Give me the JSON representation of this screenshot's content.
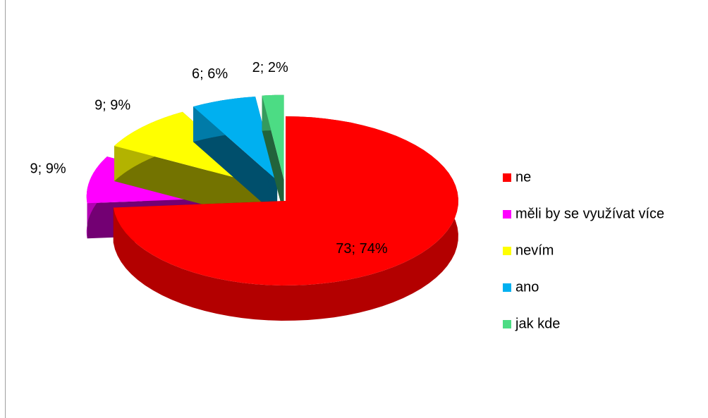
{
  "chart_data": {
    "type": "pie",
    "categories": [
      "ne",
      "měli by se využívat více",
      "nevím",
      "ano",
      "jak kde"
    ],
    "values": [
      73,
      9,
      9,
      6,
      2
    ],
    "value_labels": [
      "73; 74%",
      "9; 9%",
      "9; 9%",
      "6; 6%",
      "2; 2%"
    ],
    "colors": [
      "#ff0000",
      "#ff00ff",
      "#ffff00",
      "#00b0f0",
      "#4cdc84"
    ],
    "legend": "right"
  }
}
